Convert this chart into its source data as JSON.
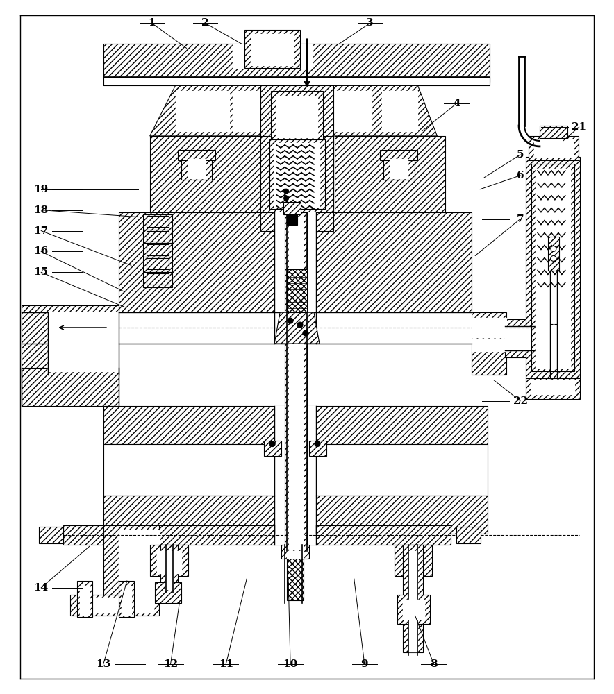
{
  "figure_width": 8.84,
  "figure_height": 10.0,
  "dpi": 100,
  "bg": "#ffffff",
  "lc": "#000000",
  "label_positions": [
    [
      "1",
      218,
      32,
      268,
      68
    ],
    [
      "2",
      295,
      32,
      348,
      62
    ],
    [
      "3",
      533,
      32,
      488,
      62
    ],
    [
      "4",
      658,
      148,
      608,
      188
    ],
    [
      "5",
      750,
      222,
      698,
      255
    ],
    [
      "6",
      750,
      252,
      692,
      272
    ],
    [
      "7",
      750,
      315,
      685,
      368
    ],
    [
      "8",
      625,
      958,
      598,
      888
    ],
    [
      "9",
      525,
      958,
      510,
      835
    ],
    [
      "10",
      418,
      958,
      415,
      835
    ],
    [
      "11",
      325,
      958,
      355,
      835
    ],
    [
      "12",
      245,
      958,
      258,
      868
    ],
    [
      "13",
      148,
      958,
      182,
      838
    ],
    [
      "14",
      58,
      848,
      128,
      788
    ],
    [
      "15",
      58,
      392,
      178,
      442
    ],
    [
      "16",
      58,
      362,
      178,
      420
    ],
    [
      "17",
      58,
      332,
      188,
      382
    ],
    [
      "18",
      58,
      302,
      198,
      312
    ],
    [
      "19",
      58,
      272,
      198,
      272
    ],
    [
      "21",
      835,
      182,
      812,
      202
    ],
    [
      "22",
      750,
      578,
      712,
      548
    ]
  ]
}
